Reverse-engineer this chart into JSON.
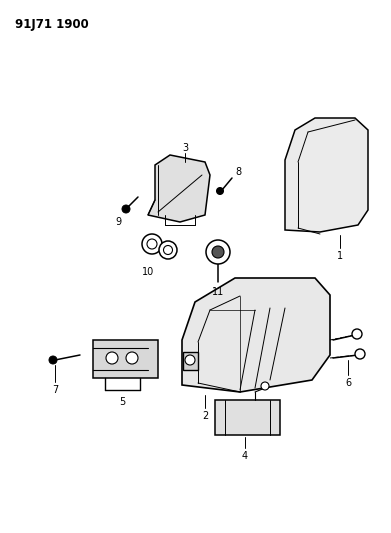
{
  "title": "91J71 1900",
  "background_color": "#ffffff",
  "line_color": "#000000",
  "figsize": [
    3.91,
    5.33
  ],
  "dpi": 100
}
